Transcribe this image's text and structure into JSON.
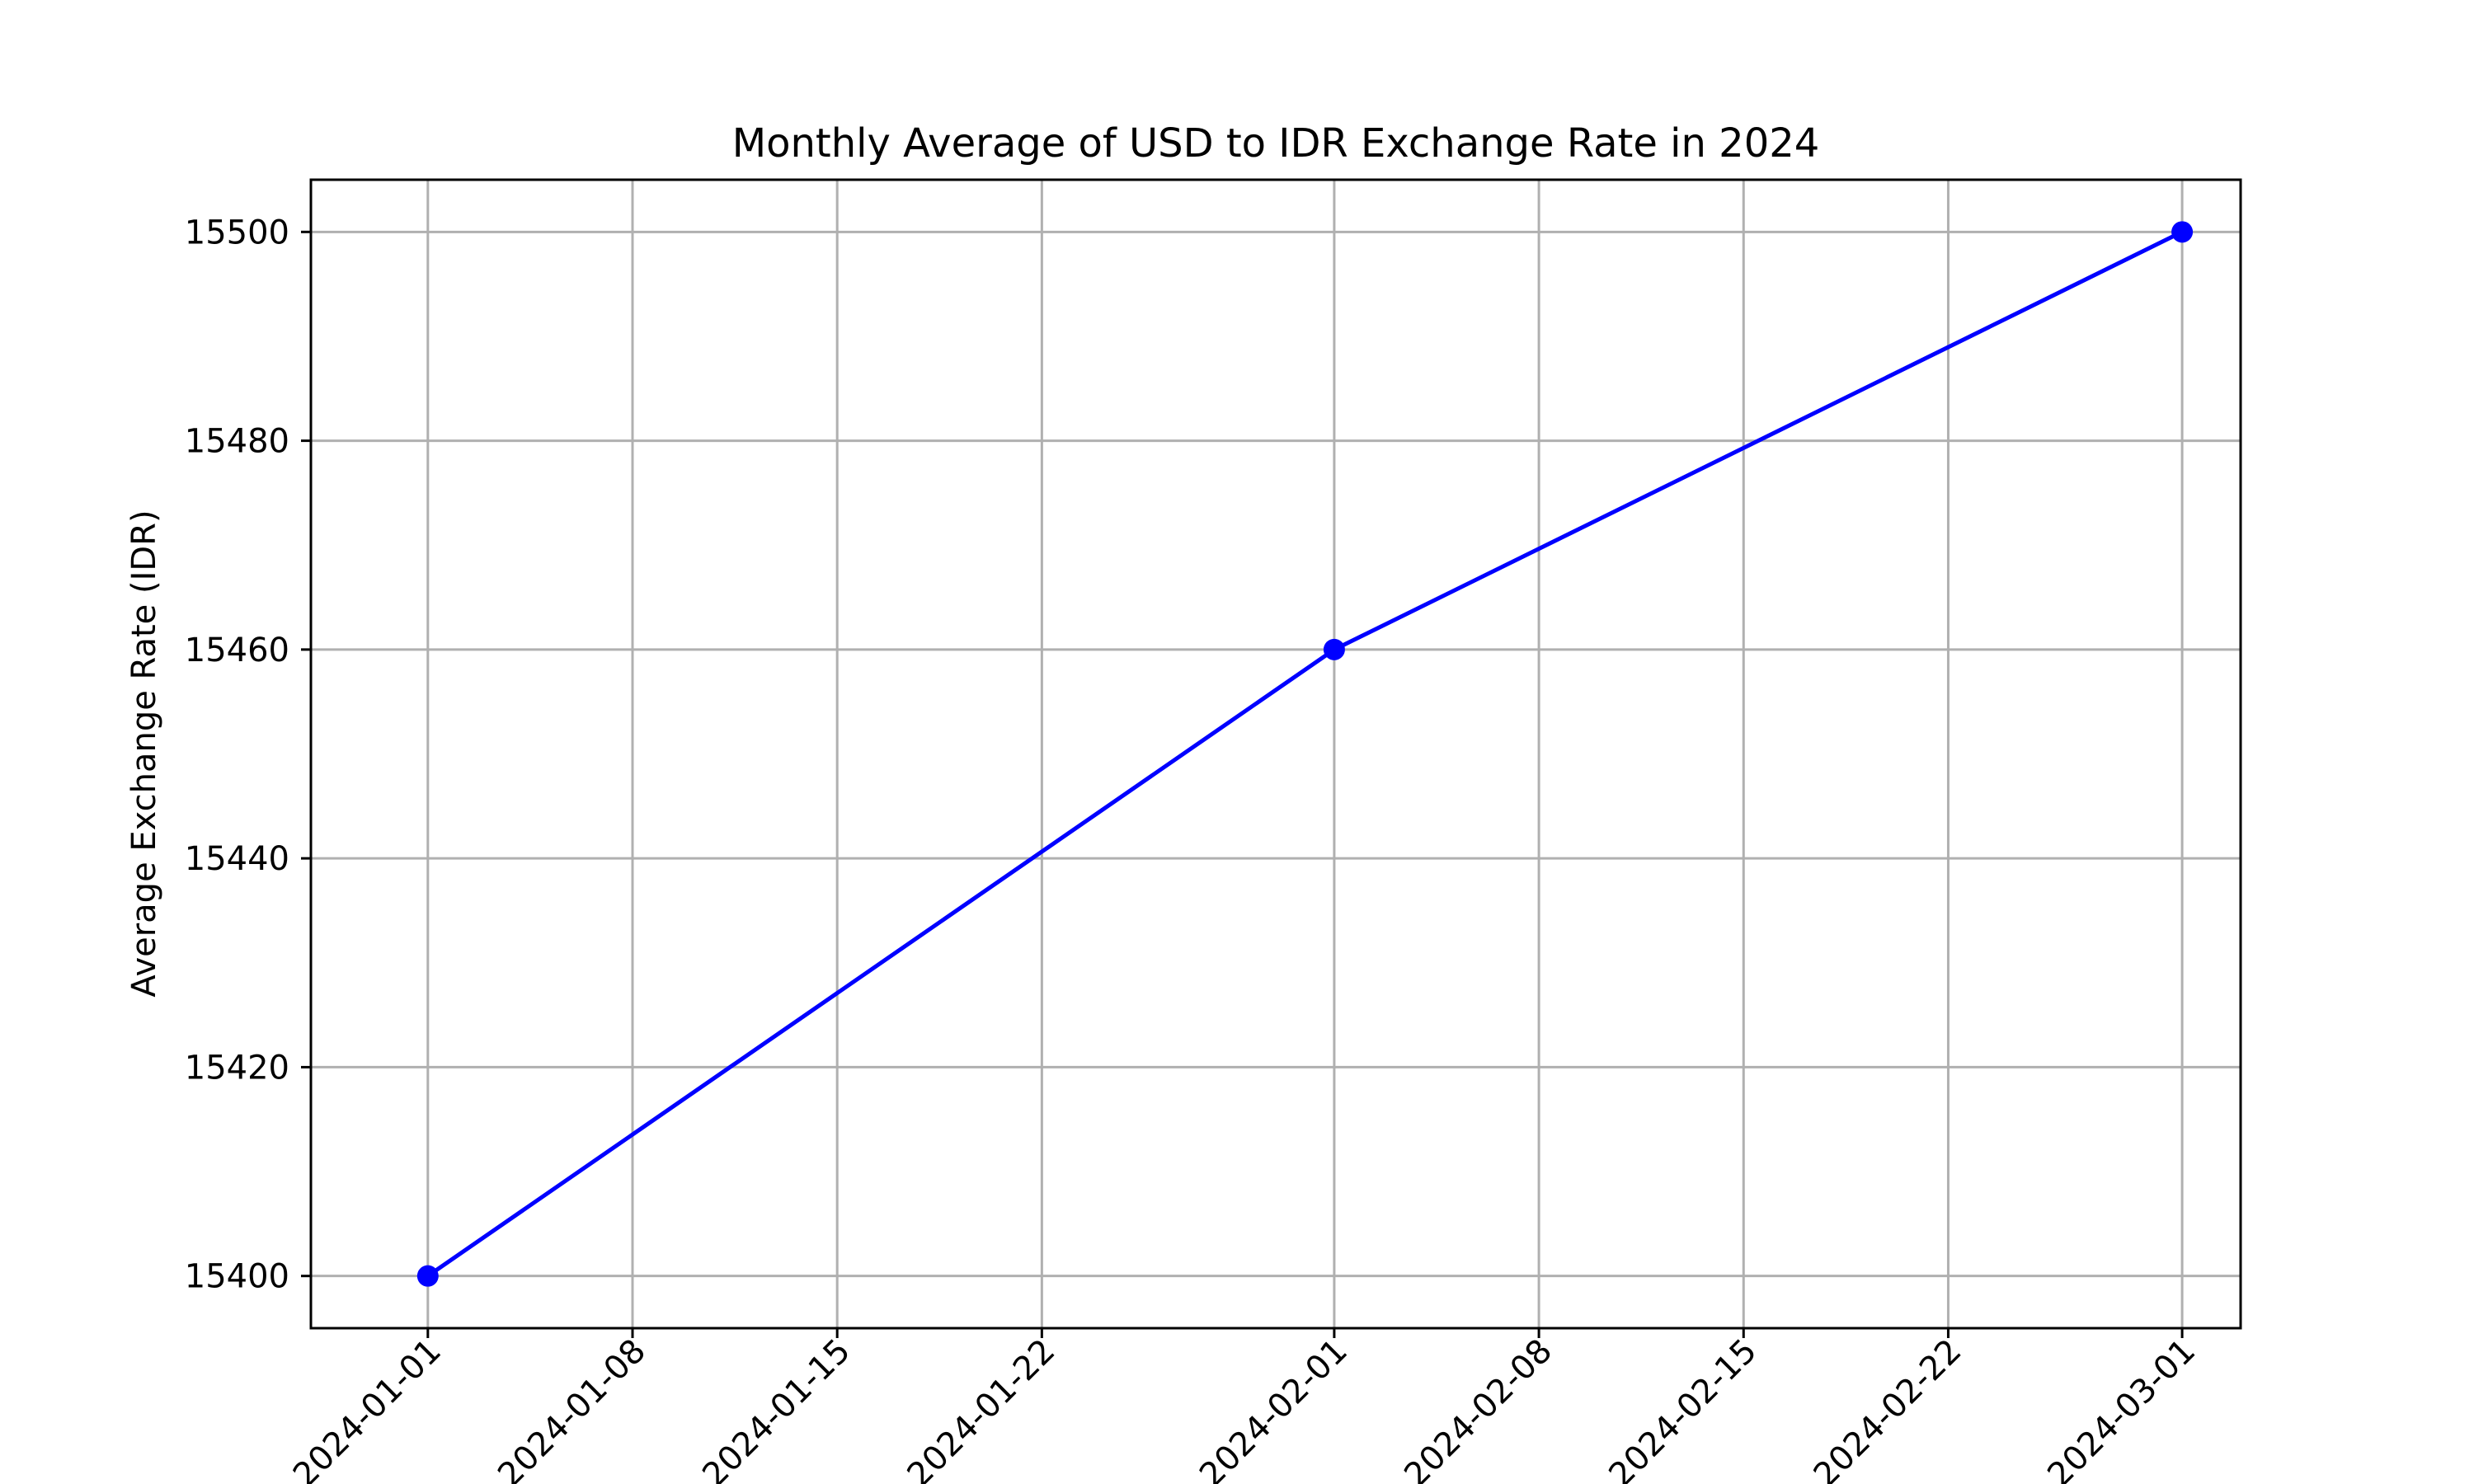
{
  "chart_data": {
    "type": "line",
    "title": "Monthly Average of USD to IDR Exchange Rate in 2024",
    "xlabel": "",
    "ylabel": "Average Exchange Rate (IDR)",
    "x": [
      "2024-01-01",
      "2024-02-01",
      "2024-03-01"
    ],
    "series": [
      {
        "values": [
          15400,
          15460,
          15500
        ],
        "color": "#0000ff",
        "marker": "circle"
      }
    ],
    "xlim": [
      "2023-12-28",
      "2024-03-03"
    ],
    "ylim": [
      15395,
      15505
    ],
    "x_ticks": [
      "2024-01-01",
      "2024-01-08",
      "2024-01-15",
      "2024-01-22",
      "2024-02-01",
      "2024-02-08",
      "2024-02-15",
      "2024-02-22",
      "2024-03-01"
    ],
    "y_ticks": [
      15400,
      15420,
      15440,
      15460,
      15480,
      15500
    ],
    "grid": true,
    "legend": "none"
  }
}
